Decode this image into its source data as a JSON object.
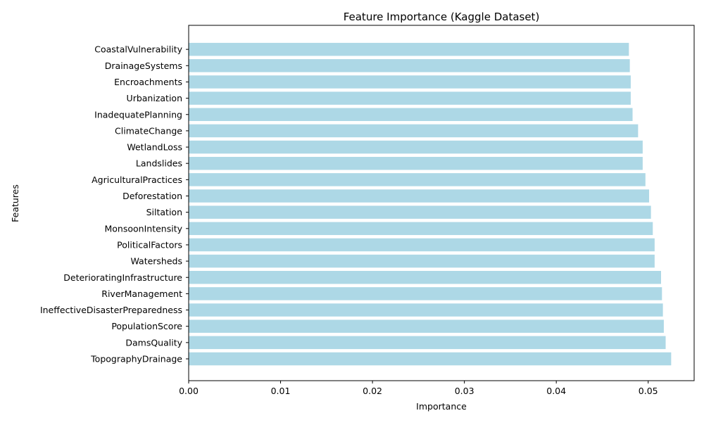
{
  "chart_data": {
    "type": "bar",
    "orientation": "horizontal",
    "title": "Feature Importance (Kaggle Dataset)",
    "xlabel": "Importance",
    "ylabel": "Features",
    "xlim": [
      0,
      0.055
    ],
    "xticks": [
      0.0,
      0.01,
      0.02,
      0.03,
      0.04,
      0.05
    ],
    "xtick_labels": [
      "0.00",
      "0.01",
      "0.02",
      "0.03",
      "0.04",
      "0.05"
    ],
    "grid": false,
    "bar_color": "#add8e6",
    "categories": [
      "TopographyDrainage",
      "DamsQuality",
      "PopulationScore",
      "IneffectiveDisasterPreparedness",
      "RiverManagement",
      "DeterioratingInfrastructure",
      "Watersheds",
      "PoliticalFactors",
      "MonsoonIntensity",
      "Siltation",
      "Deforestation",
      "AgriculturalPractices",
      "Landslides",
      "WetlandLoss",
      "ClimateChange",
      "InadequatePlanning",
      "Urbanization",
      "Encroachments",
      "DrainageSystems",
      "CoastalVulnerability"
    ],
    "values": [
      0.0525,
      0.0519,
      0.0517,
      0.0516,
      0.0515,
      0.0514,
      0.0507,
      0.0507,
      0.0505,
      0.0503,
      0.0501,
      0.0497,
      0.0494,
      0.0494,
      0.0489,
      0.0483,
      0.0481,
      0.0481,
      0.048,
      0.0479
    ]
  }
}
